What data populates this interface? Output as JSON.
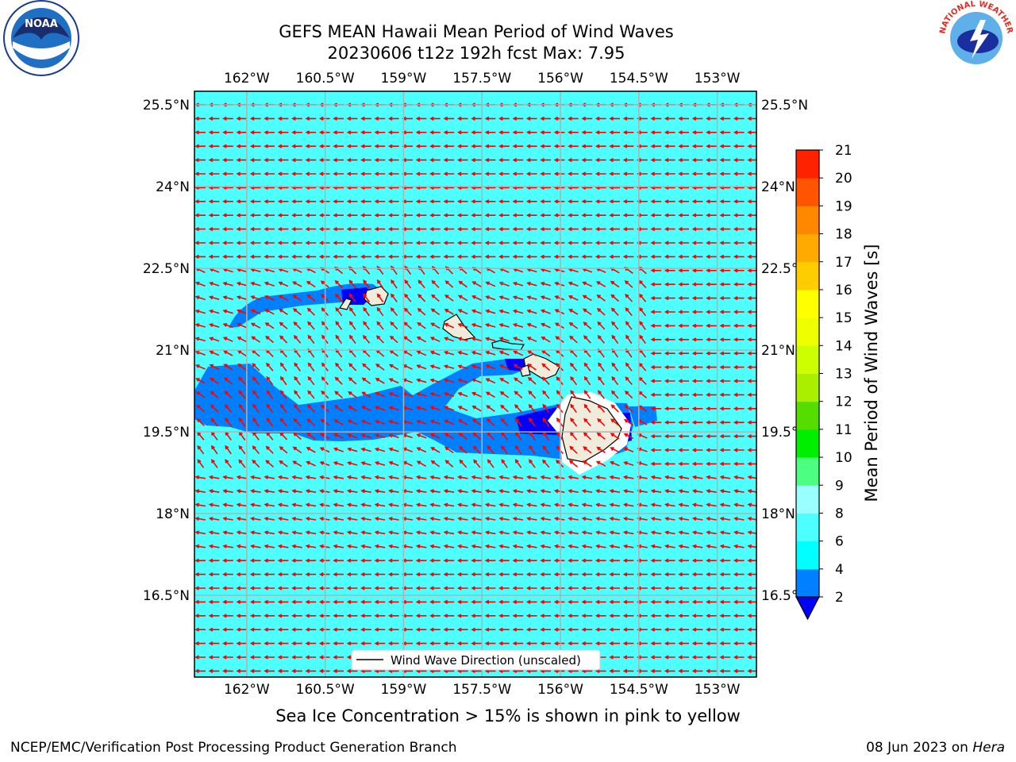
{
  "title_line1": "GEFS MEAN Hawaii Mean Period of Wind Waves",
  "title_line2": "20230606 t12z 192h fcst   Max: 7.95",
  "caption": "Sea Ice Concentration > 15% is shown in pink to yellow",
  "footer_left": "NCEP/EMC/Verification Post Processing Product Generation Branch",
  "footer_right_date": "08 Jun 2023 on",
  "footer_right_host": "Hera",
  "logos": {
    "left": "noaa-logo",
    "right": "nws-logo",
    "noaa_text": "NOAA",
    "nws_text": "NATIONAL WEATHER SERVICE"
  },
  "map": {
    "lon_ticks": [
      "162°W",
      "160.5°W",
      "159°W",
      "157.5°W",
      "156°W",
      "154.5°W",
      "153°W"
    ],
    "lon_values": [
      -162,
      -160.5,
      -159,
      -157.5,
      -156,
      -154.5,
      -153
    ],
    "lat_ticks": [
      "25.5°N",
      "24°N",
      "22.5°N",
      "21°N",
      "19.5°N",
      "18°N",
      "16.5°N"
    ],
    "lat_values": [
      25.5,
      24,
      22.5,
      21,
      19.5,
      18,
      16.5
    ],
    "lon_range": [
      -163,
      -152.25
    ],
    "lat_range": [
      15,
      25.75
    ],
    "legend_label": "Wind Wave Direction (unscaled)",
    "background_color": "#4dffff",
    "arrow_color": "#ff0000"
  },
  "colorbar": {
    "label": "Mean Period of Wind Waves [s]",
    "tick_labels": [
      "2",
      "4",
      "6",
      "8",
      "9",
      "10",
      "11",
      "12",
      "13",
      "14",
      "15",
      "16",
      "17",
      "18",
      "19",
      "20",
      "21"
    ],
    "colors": [
      "#0080ff",
      "#00ffff",
      "#4dffff",
      "#99ffff",
      "#4dff80",
      "#00ee00",
      "#55dd00",
      "#aaee00",
      "#ccff00",
      "#eeff00",
      "#ffff00",
      "#ffcc00",
      "#ffaa00",
      "#ff8800",
      "#ff5500",
      "#ff2200"
    ],
    "under_color": "#0000ff"
  }
}
